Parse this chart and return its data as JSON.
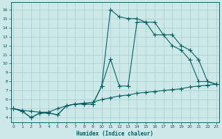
{
  "xlabel": "Humidex (Indice chaleur)",
  "bg_color": "#cce8e8",
  "line_color": "#006060",
  "grid_color": "#aacccc",
  "xticks": [
    0,
    1,
    2,
    3,
    4,
    5,
    6,
    7,
    8,
    9,
    10,
    11,
    12,
    13,
    14,
    15,
    16,
    17,
    18,
    19,
    20,
    21,
    22,
    23
  ],
  "yticks": [
    4,
    5,
    6,
    7,
    8,
    9,
    10,
    11,
    12,
    13,
    14,
    15,
    16
  ],
  "xlim": [
    -0.3,
    23.3
  ],
  "ylim": [
    3.5,
    16.8
  ],
  "line1_x": [
    0,
    1,
    2,
    3,
    4,
    5,
    6,
    7,
    8,
    9,
    10,
    11,
    12,
    13,
    14,
    15,
    16,
    17,
    18,
    19,
    20,
    21,
    22,
    23
  ],
  "line1_y": [
    5.0,
    4.7,
    4.0,
    4.5,
    4.5,
    4.3,
    5.3,
    5.5,
    5.5,
    5.5,
    7.5,
    16.0,
    15.2,
    15.0,
    15.0,
    14.6,
    14.6,
    13.2,
    13.2,
    12.0,
    11.5,
    10.4,
    8.0,
    7.7
  ],
  "line2_x": [
    0,
    1,
    2,
    3,
    4,
    5,
    6,
    7,
    8,
    9,
    10,
    11,
    12,
    13,
    14,
    15,
    16,
    17,
    18,
    19,
    20,
    21,
    22,
    23
  ],
  "line2_y": [
    5.0,
    4.7,
    4.0,
    4.5,
    4.5,
    4.3,
    5.3,
    5.5,
    5.5,
    5.5,
    7.5,
    10.5,
    7.5,
    7.5,
    14.6,
    14.6,
    13.2,
    13.2,
    12.0,
    11.5,
    10.4,
    8.0,
    8.0,
    7.7
  ],
  "line3_x": [
    0,
    1,
    2,
    3,
    4,
    5,
    6,
    7,
    8,
    9,
    10,
    11,
    12,
    13,
    14,
    15,
    16,
    17,
    18,
    19,
    20,
    21,
    22,
    23
  ],
  "line3_y": [
    5.0,
    4.8,
    4.7,
    4.6,
    4.6,
    5.0,
    5.3,
    5.5,
    5.6,
    5.7,
    6.0,
    6.2,
    6.4,
    6.5,
    6.7,
    6.8,
    6.9,
    7.0,
    7.1,
    7.2,
    7.4,
    7.5,
    7.6,
    7.7
  ]
}
